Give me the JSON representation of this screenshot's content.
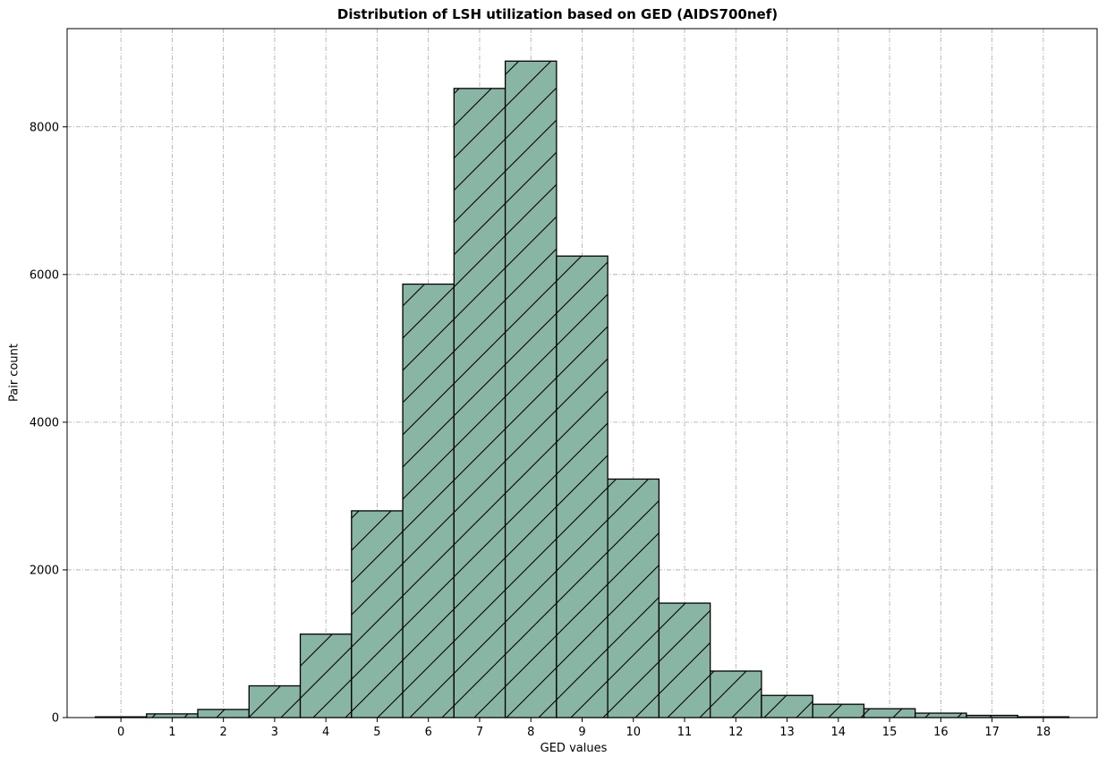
{
  "chart_data": {
    "type": "bar",
    "title": "Distribution of LSH utilization based on GED (AIDS700nef)",
    "xlabel": "GED values",
    "ylabel": "Pair count",
    "categories": [
      "0",
      "1",
      "2",
      "3",
      "4",
      "5",
      "6",
      "7",
      "8",
      "9",
      "10",
      "11",
      "12",
      "13",
      "14",
      "15",
      "16",
      "17",
      "18"
    ],
    "values": [
      10,
      50,
      110,
      430,
      1130,
      2800,
      5870,
      8520,
      8890,
      6250,
      3230,
      1550,
      630,
      300,
      180,
      120,
      60,
      30,
      10
    ],
    "ylim": [
      0,
      9330
    ],
    "yticks": [
      0,
      2000,
      4000,
      6000,
      8000
    ],
    "grid": true,
    "bar_color": "#88b5a4",
    "edge_color": "#000000",
    "hatch": "/"
  }
}
